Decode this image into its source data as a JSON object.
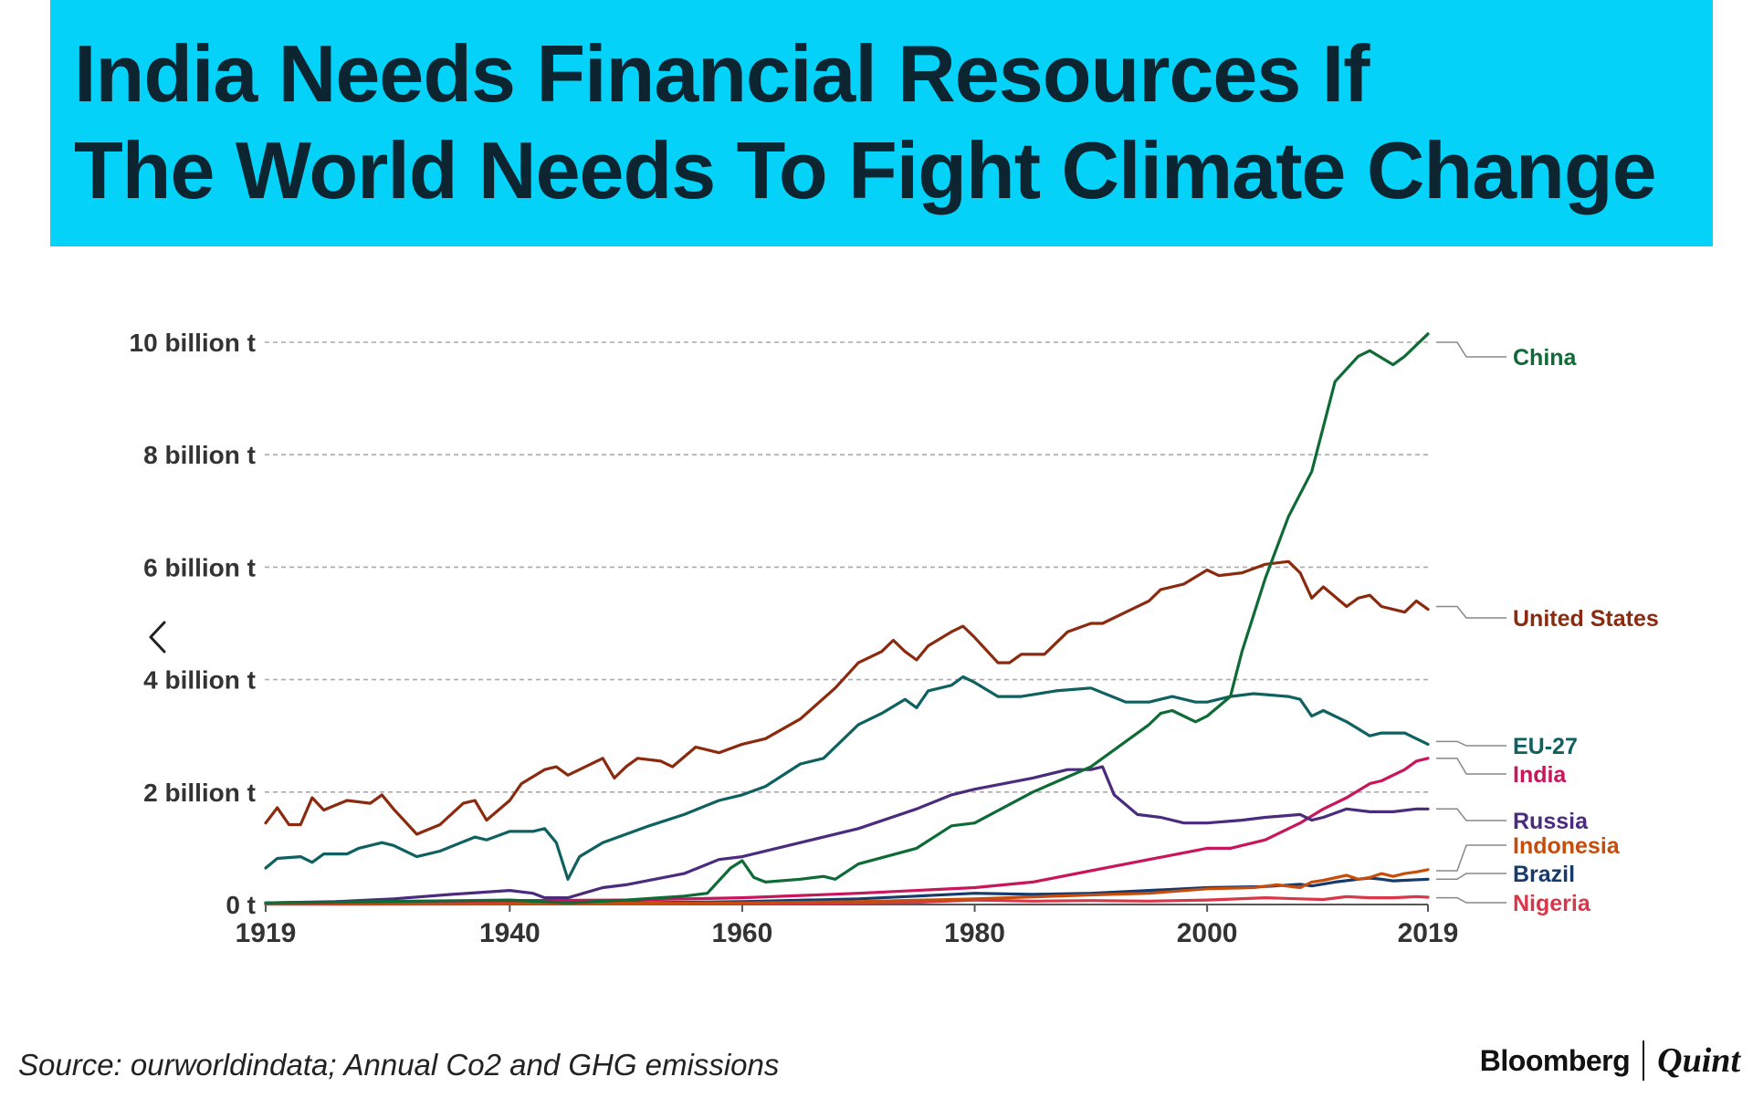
{
  "headline": {
    "line1": "India Needs Financial Resources If",
    "line2": "The World Needs To Fight Climate Change"
  },
  "source": "Source: ourworldindata; Annual Co2 and GHG emissions",
  "brand": {
    "left": "Bloomberg",
    "right": "Quint"
  },
  "nav": {
    "icon": "chevron-left-icon",
    "glyph": "‹"
  },
  "colors": {
    "banner": "#04d2f8",
    "headline_text": "#0d2530"
  },
  "chart_data": {
    "type": "line",
    "title": "",
    "xlabel": "",
    "ylabel": "",
    "xlim": [
      1919,
      2019
    ],
    "ylim": [
      0,
      10
    ],
    "y_unit": "billion t",
    "x_ticks": [
      1919,
      1940,
      1960,
      1980,
      2000,
      2019
    ],
    "x_tick_labels": [
      "1919",
      "1940",
      "1960",
      "1980",
      "2000",
      "2019"
    ],
    "y_ticks": [
      0,
      2,
      4,
      6,
      8,
      10
    ],
    "y_tick_labels": [
      "0 t",
      "2 billion t",
      "4 billion t",
      "6 billion t",
      "8 billion t",
      "10 billion t"
    ],
    "grid": true,
    "legend": "right (end-of-line labels)",
    "series": [
      {
        "name": "China",
        "color": "#0f6b35",
        "label_value": 10.0,
        "points": [
          [
            1919,
            0.03
          ],
          [
            1940,
            0.08
          ],
          [
            1945,
            0.03
          ],
          [
            1950,
            0.08
          ],
          [
            1955,
            0.15
          ],
          [
            1957,
            0.2
          ],
          [
            1959,
            0.65
          ],
          [
            1960,
            0.78
          ],
          [
            1961,
            0.48
          ],
          [
            1962,
            0.4
          ],
          [
            1965,
            0.45
          ],
          [
            1967,
            0.5
          ],
          [
            1968,
            0.45
          ],
          [
            1970,
            0.72
          ],
          [
            1975,
            1.0
          ],
          [
            1978,
            1.4
          ],
          [
            1980,
            1.45
          ],
          [
            1985,
            2.0
          ],
          [
            1990,
            2.45
          ],
          [
            1995,
            3.2
          ],
          [
            1996,
            3.4
          ],
          [
            1997,
            3.45
          ],
          [
            1999,
            3.25
          ],
          [
            2000,
            3.35
          ],
          [
            2002,
            3.7
          ],
          [
            2003,
            4.5
          ],
          [
            2005,
            5.8
          ],
          [
            2007,
            6.9
          ],
          [
            2009,
            7.7
          ],
          [
            2011,
            9.3
          ],
          [
            2013,
            9.75
          ],
          [
            2014,
            9.85
          ],
          [
            2016,
            9.6
          ],
          [
            2017,
            9.75
          ],
          [
            2019,
            10.15
          ]
        ]
      },
      {
        "name": "United States",
        "color": "#8b2a0e",
        "label_value": 5.3,
        "points": [
          [
            1919,
            1.45
          ],
          [
            1920,
            1.72
          ],
          [
            1921,
            1.42
          ],
          [
            1922,
            1.42
          ],
          [
            1923,
            1.9
          ],
          [
            1924,
            1.68
          ],
          [
            1926,
            1.85
          ],
          [
            1928,
            1.8
          ],
          [
            1929,
            1.95
          ],
          [
            1930,
            1.7
          ],
          [
            1932,
            1.25
          ],
          [
            1934,
            1.42
          ],
          [
            1936,
            1.8
          ],
          [
            1937,
            1.85
          ],
          [
            1938,
            1.5
          ],
          [
            1940,
            1.85
          ],
          [
            1941,
            2.15
          ],
          [
            1943,
            2.4
          ],
          [
            1944,
            2.45
          ],
          [
            1945,
            2.3
          ],
          [
            1946,
            2.4
          ],
          [
            1948,
            2.6
          ],
          [
            1949,
            2.25
          ],
          [
            1950,
            2.45
          ],
          [
            1951,
            2.6
          ],
          [
            1953,
            2.55
          ],
          [
            1954,
            2.45
          ],
          [
            1956,
            2.8
          ],
          [
            1958,
            2.7
          ],
          [
            1960,
            2.85
          ],
          [
            1962,
            2.95
          ],
          [
            1965,
            3.3
          ],
          [
            1968,
            3.85
          ],
          [
            1970,
            4.3
          ],
          [
            1972,
            4.5
          ],
          [
            1973,
            4.7
          ],
          [
            1974,
            4.5
          ],
          [
            1975,
            4.35
          ],
          [
            1976,
            4.6
          ],
          [
            1978,
            4.85
          ],
          [
            1979,
            4.95
          ],
          [
            1980,
            4.75
          ],
          [
            1982,
            4.3
          ],
          [
            1983,
            4.3
          ],
          [
            1984,
            4.45
          ],
          [
            1986,
            4.45
          ],
          [
            1988,
            4.85
          ],
          [
            1990,
            5.0
          ],
          [
            1991,
            5.0
          ],
          [
            1993,
            5.2
          ],
          [
            1995,
            5.4
          ],
          [
            1996,
            5.6
          ],
          [
            1998,
            5.7
          ],
          [
            2000,
            5.95
          ],
          [
            2001,
            5.85
          ],
          [
            2003,
            5.9
          ],
          [
            2005,
            6.05
          ],
          [
            2007,
            6.1
          ],
          [
            2008,
            5.9
          ],
          [
            2009,
            5.45
          ],
          [
            2010,
            5.65
          ],
          [
            2012,
            5.3
          ],
          [
            2013,
            5.45
          ],
          [
            2014,
            5.5
          ],
          [
            2015,
            5.3
          ],
          [
            2017,
            5.2
          ],
          [
            2018,
            5.4
          ],
          [
            2019,
            5.25
          ]
        ]
      },
      {
        "name": "EU-27",
        "color": "#0e6160",
        "label_value": 2.9,
        "points": [
          [
            1919,
            0.65
          ],
          [
            1920,
            0.82
          ],
          [
            1922,
            0.85
          ],
          [
            1923,
            0.75
          ],
          [
            1924,
            0.9
          ],
          [
            1926,
            0.9
          ],
          [
            1927,
            1.0
          ],
          [
            1929,
            1.1
          ],
          [
            1930,
            1.05
          ],
          [
            1932,
            0.85
          ],
          [
            1934,
            0.95
          ],
          [
            1937,
            1.2
          ],
          [
            1938,
            1.15
          ],
          [
            1940,
            1.3
          ],
          [
            1942,
            1.3
          ],
          [
            1943,
            1.35
          ],
          [
            1944,
            1.1
          ],
          [
            1945,
            0.45
          ],
          [
            1946,
            0.85
          ],
          [
            1948,
            1.1
          ],
          [
            1950,
            1.25
          ],
          [
            1952,
            1.4
          ],
          [
            1955,
            1.6
          ],
          [
            1958,
            1.85
          ],
          [
            1960,
            1.95
          ],
          [
            1962,
            2.1
          ],
          [
            1965,
            2.5
          ],
          [
            1967,
            2.6
          ],
          [
            1970,
            3.2
          ],
          [
            1972,
            3.4
          ],
          [
            1974,
            3.65
          ],
          [
            1975,
            3.5
          ],
          [
            1976,
            3.8
          ],
          [
            1978,
            3.9
          ],
          [
            1979,
            4.05
          ],
          [
            1980,
            3.95
          ],
          [
            1982,
            3.7
          ],
          [
            1984,
            3.7
          ],
          [
            1987,
            3.8
          ],
          [
            1990,
            3.85
          ],
          [
            1993,
            3.6
          ],
          [
            1995,
            3.6
          ],
          [
            1997,
            3.7
          ],
          [
            1999,
            3.6
          ],
          [
            2000,
            3.6
          ],
          [
            2002,
            3.7
          ],
          [
            2004,
            3.75
          ],
          [
            2007,
            3.7
          ],
          [
            2008,
            3.65
          ],
          [
            2009,
            3.35
          ],
          [
            2010,
            3.45
          ],
          [
            2012,
            3.25
          ],
          [
            2014,
            3.0
          ],
          [
            2015,
            3.05
          ],
          [
            2017,
            3.05
          ],
          [
            2018,
            2.95
          ],
          [
            2019,
            2.85
          ]
        ]
      },
      {
        "name": "India",
        "color": "#c8155c",
        "label_value": 2.6,
        "points": [
          [
            1919,
            0.03
          ],
          [
            1940,
            0.07
          ],
          [
            1950,
            0.08
          ],
          [
            1960,
            0.12
          ],
          [
            1970,
            0.2
          ],
          [
            1980,
            0.3
          ],
          [
            1985,
            0.4
          ],
          [
            1990,
            0.6
          ],
          [
            1995,
            0.8
          ],
          [
            2000,
            1.0
          ],
          [
            2002,
            1.0
          ],
          [
            2005,
            1.15
          ],
          [
            2008,
            1.45
          ],
          [
            2010,
            1.7
          ],
          [
            2012,
            1.9
          ],
          [
            2014,
            2.15
          ],
          [
            2015,
            2.2
          ],
          [
            2016,
            2.3
          ],
          [
            2017,
            2.4
          ],
          [
            2018,
            2.55
          ],
          [
            2019,
            2.6
          ]
        ]
      },
      {
        "name": "Russia",
        "color": "#4a2b7d",
        "label_value": 1.7,
        "points": [
          [
            1919,
            0.03
          ],
          [
            1925,
            0.05
          ],
          [
            1930,
            0.1
          ],
          [
            1935,
            0.18
          ],
          [
            1940,
            0.25
          ],
          [
            1942,
            0.2
          ],
          [
            1943,
            0.12
          ],
          [
            1945,
            0.12
          ],
          [
            1948,
            0.3
          ],
          [
            1950,
            0.35
          ],
          [
            1955,
            0.55
          ],
          [
            1958,
            0.8
          ],
          [
            1960,
            0.85
          ],
          [
            1965,
            1.1
          ],
          [
            1970,
            1.35
          ],
          [
            1975,
            1.7
          ],
          [
            1978,
            1.95
          ],
          [
            1980,
            2.05
          ],
          [
            1985,
            2.25
          ],
          [
            1988,
            2.4
          ],
          [
            1990,
            2.4
          ],
          [
            1991,
            2.45
          ],
          [
            1992,
            1.95
          ],
          [
            1994,
            1.6
          ],
          [
            1996,
            1.55
          ],
          [
            1998,
            1.45
          ],
          [
            2000,
            1.45
          ],
          [
            2003,
            1.5
          ],
          [
            2005,
            1.55
          ],
          [
            2008,
            1.6
          ],
          [
            2009,
            1.5
          ],
          [
            2010,
            1.55
          ],
          [
            2012,
            1.7
          ],
          [
            2014,
            1.65
          ],
          [
            2016,
            1.65
          ],
          [
            2018,
            1.7
          ],
          [
            2019,
            1.7
          ]
        ]
      },
      {
        "name": "Indonesia",
        "color": "#c64d0c",
        "label_value": 0.6,
        "points": [
          [
            1919,
            0.01
          ],
          [
            1960,
            0.03
          ],
          [
            1970,
            0.05
          ],
          [
            1980,
            0.1
          ],
          [
            1990,
            0.17
          ],
          [
            1995,
            0.2
          ],
          [
            2000,
            0.28
          ],
          [
            2004,
            0.3
          ],
          [
            2006,
            0.35
          ],
          [
            2008,
            0.3
          ],
          [
            2009,
            0.4
          ],
          [
            2010,
            0.43
          ],
          [
            2012,
            0.52
          ],
          [
            2013,
            0.45
          ],
          [
            2014,
            0.48
          ],
          [
            2015,
            0.55
          ],
          [
            2016,
            0.5
          ],
          [
            2017,
            0.55
          ],
          [
            2018,
            0.58
          ],
          [
            2019,
            0.62
          ]
        ]
      },
      {
        "name": "Brazil",
        "color": "#173a6b",
        "label_value": 0.45,
        "points": [
          [
            1919,
            0.01
          ],
          [
            1950,
            0.03
          ],
          [
            1960,
            0.05
          ],
          [
            1970,
            0.1
          ],
          [
            1975,
            0.15
          ],
          [
            1980,
            0.2
          ],
          [
            1985,
            0.18
          ],
          [
            1990,
            0.2
          ],
          [
            1995,
            0.25
          ],
          [
            2000,
            0.3
          ],
          [
            2005,
            0.32
          ],
          [
            2008,
            0.36
          ],
          [
            2009,
            0.33
          ],
          [
            2011,
            0.4
          ],
          [
            2013,
            0.45
          ],
          [
            2014,
            0.47
          ],
          [
            2015,
            0.45
          ],
          [
            2016,
            0.42
          ],
          [
            2017,
            0.43
          ],
          [
            2019,
            0.45
          ]
        ]
      },
      {
        "name": "Nigeria",
        "color": "#d9364a",
        "label_value": 0.12,
        "points": [
          [
            1919,
            0.005
          ],
          [
            1950,
            0.01
          ],
          [
            1965,
            0.02
          ],
          [
            1975,
            0.04
          ],
          [
            1980,
            0.08
          ],
          [
            1985,
            0.06
          ],
          [
            1990,
            0.07
          ],
          [
            1995,
            0.06
          ],
          [
            2000,
            0.08
          ],
          [
            2005,
            0.12
          ],
          [
            2008,
            0.1
          ],
          [
            2010,
            0.09
          ],
          [
            2012,
            0.14
          ],
          [
            2014,
            0.12
          ],
          [
            2016,
            0.12
          ],
          [
            2018,
            0.14
          ],
          [
            2019,
            0.13
          ]
        ]
      }
    ]
  }
}
